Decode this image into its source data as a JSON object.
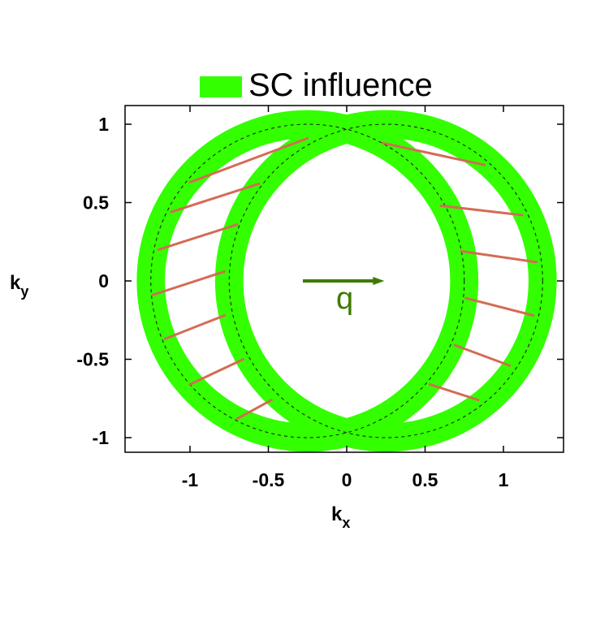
{
  "chart_data": {
    "type": "scatter",
    "title": "",
    "legend": {
      "label": "SC influence",
      "color": "#33ff00",
      "placement": "top"
    },
    "xlabel": {
      "main": "k",
      "sub": "x"
    },
    "ylabel": {
      "main": "k",
      "sub": "y"
    },
    "xlim": [
      -1.4,
      1.4
    ],
    "ylim": [
      -1.1,
      1.1
    ],
    "x_ticks": [
      "-1",
      "-0.5",
      "0",
      "0.5",
      "1"
    ],
    "x_tick_values": [
      -1,
      -0.5,
      0,
      0.5,
      1
    ],
    "y_ticks": [
      "1",
      "0.5",
      "0",
      "-0.5",
      "-1"
    ],
    "y_tick_values": [
      1,
      0.5,
      0,
      -0.5,
      -1
    ],
    "circles": [
      {
        "name": "left",
        "cx": -0.25,
        "cy": 0,
        "r": 1.0
      },
      {
        "name": "right",
        "cx": 0.25,
        "cy": 0,
        "r": 1.0
      }
    ],
    "ring_width_k": 0.18,
    "ring_color": "#33ff00",
    "dashed_color": "#111111",
    "pair_lines_color": "#d46b55",
    "pair_lines": [
      [
        -0.25,
        0.91,
        -1.0,
        0.63
      ],
      [
        -0.56,
        0.62,
        -1.12,
        0.44
      ],
      [
        -0.7,
        0.36,
        -1.2,
        0.2
      ],
      [
        -0.78,
        0.06,
        -1.24,
        -0.09
      ],
      [
        -0.78,
        -0.22,
        -1.16,
        -0.37
      ],
      [
        -0.66,
        -0.5,
        -1.0,
        -0.66
      ],
      [
        -0.48,
        -0.76,
        -0.7,
        -0.88
      ],
      [
        0.23,
        0.88,
        0.88,
        0.74
      ],
      [
        0.6,
        0.48,
        1.12,
        0.42
      ],
      [
        0.73,
        0.19,
        1.21,
        0.12
      ],
      [
        0.76,
        -0.11,
        1.19,
        -0.22
      ],
      [
        0.69,
        -0.41,
        1.04,
        -0.54
      ],
      [
        0.53,
        -0.66,
        0.84,
        -0.76
      ]
    ],
    "arrow": {
      "label": "q",
      "x0": -0.28,
      "y0": 0,
      "x1": 0.24,
      "y1": 0,
      "color": "#3d7a00"
    }
  }
}
